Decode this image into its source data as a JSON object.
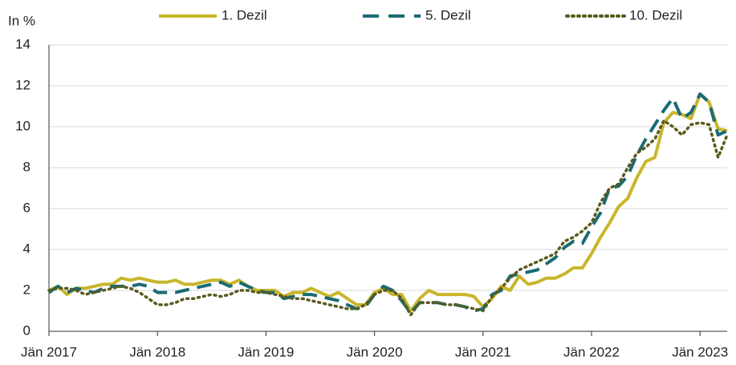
{
  "chart_data": {
    "type": "line",
    "y_label": "In %",
    "categories": [
      "Jän 2017",
      null,
      null,
      null,
      null,
      null,
      null,
      null,
      null,
      null,
      null,
      null,
      "Jän 2018",
      null,
      null,
      null,
      null,
      null,
      null,
      null,
      null,
      null,
      null,
      null,
      "Jän 2019",
      null,
      null,
      null,
      null,
      null,
      null,
      null,
      null,
      null,
      null,
      null,
      "Jän 2020",
      null,
      null,
      null,
      null,
      null,
      null,
      null,
      null,
      null,
      null,
      null,
      "Jän 2021",
      null,
      null,
      null,
      null,
      null,
      null,
      null,
      null,
      null,
      null,
      null,
      "Jän 2022",
      null,
      null,
      null,
      null,
      null,
      null,
      null,
      null,
      null,
      null,
      null,
      "Jän 2023",
      null,
      null,
      null
    ],
    "series": [
      {
        "name": "1. Dezil",
        "color": "#c9b62a",
        "dash": "solid",
        "values": [
          2.0,
          2.2,
          1.8,
          2.1,
          2.1,
          2.2,
          2.3,
          2.3,
          2.6,
          2.5,
          2.6,
          2.5,
          2.4,
          2.4,
          2.5,
          2.3,
          2.3,
          2.4,
          2.5,
          2.5,
          2.3,
          2.5,
          2.2,
          2.0,
          2.0,
          2.0,
          1.7,
          1.9,
          1.9,
          2.1,
          1.9,
          1.7,
          1.9,
          1.6,
          1.3,
          1.3,
          1.9,
          2.1,
          1.8,
          1.8,
          1.0,
          1.6,
          2.0,
          1.8,
          1.8,
          1.8,
          1.8,
          1.7,
          1.2,
          1.6,
          2.2,
          2.0,
          2.7,
          2.3,
          2.4,
          2.6,
          2.6,
          2.8,
          3.1,
          3.1,
          3.8,
          4.6,
          5.3,
          6.1,
          6.5,
          7.5,
          8.3,
          8.5,
          10.2,
          10.7,
          10.6,
          10.4,
          11.6,
          11.2,
          9.9,
          9.8
        ]
      },
      {
        "name": "5. Dezil",
        "color": "#1a6b73",
        "dash": "dashed",
        "values": [
          1.9,
          2.2,
          1.9,
          2.1,
          2.0,
          1.9,
          2.1,
          2.2,
          2.2,
          2.2,
          2.3,
          2.2,
          1.9,
          1.9,
          1.9,
          2.0,
          2.1,
          2.2,
          2.3,
          2.4,
          2.2,
          2.4,
          2.2,
          2.0,
          1.9,
          1.9,
          1.6,
          1.7,
          1.8,
          1.8,
          1.7,
          1.6,
          1.5,
          1.3,
          1.1,
          1.2,
          1.8,
          2.2,
          2.0,
          1.5,
          0.9,
          1.4,
          1.4,
          1.4,
          1.3,
          1.3,
          1.2,
          1.0,
          1.1,
          1.8,
          2.0,
          2.7,
          2.8,
          2.9,
          3.0,
          3.3,
          3.6,
          4.1,
          4.4,
          4.3,
          5.1,
          5.8,
          7.0,
          7.1,
          7.6,
          8.6,
          9.4,
          10.1,
          10.8,
          11.4,
          10.4,
          10.7,
          11.6,
          11.2,
          9.6,
          9.8
        ]
      },
      {
        "name": "10. Dezil",
        "color": "#5a5a1e",
        "dash": "dotted",
        "values": [
          2.0,
          2.1,
          2.1,
          2.0,
          1.8,
          1.9,
          2.0,
          2.1,
          2.2,
          2.1,
          1.9,
          1.6,
          1.3,
          1.3,
          1.4,
          1.6,
          1.6,
          1.7,
          1.8,
          1.7,
          1.8,
          2.0,
          2.0,
          1.9,
          1.9,
          1.8,
          1.7,
          1.6,
          1.6,
          1.5,
          1.4,
          1.3,
          1.2,
          1.1,
          1.1,
          1.3,
          1.8,
          2.0,
          2.0,
          1.6,
          0.8,
          1.4,
          1.4,
          1.4,
          1.3,
          1.3,
          1.2,
          1.1,
          1.0,
          1.7,
          2.1,
          2.6,
          3.0,
          3.2,
          3.4,
          3.6,
          3.8,
          4.4,
          4.6,
          4.9,
          5.3,
          6.3,
          7.0,
          7.2,
          8.0,
          8.7,
          9.0,
          9.4,
          10.3,
          10.0,
          9.6,
          10.1,
          10.2,
          10.1,
          8.5,
          9.6
        ]
      }
    ],
    "ylim": [
      0,
      14
    ],
    "yticks": [
      0,
      2,
      4,
      6,
      8,
      10,
      12,
      14
    ],
    "grid": true,
    "legend": "top"
  }
}
